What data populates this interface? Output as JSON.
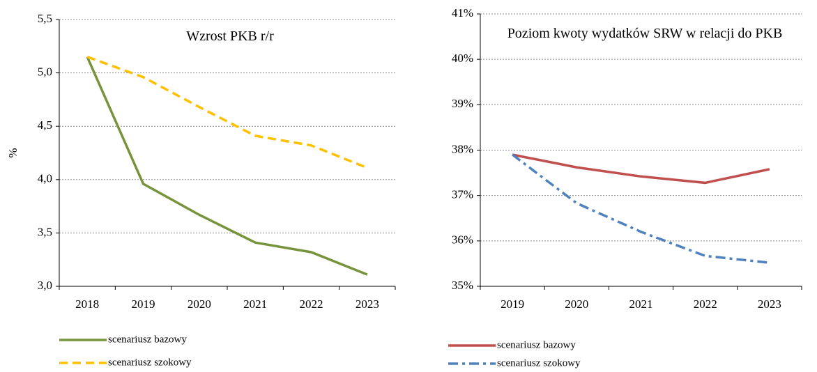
{
  "chart_data": [
    {
      "type": "line",
      "title": "Wzrost PKB r/r",
      "ylabel": "%",
      "categories": [
        "2018",
        "2019",
        "2020",
        "2021",
        "2022",
        "2023"
      ],
      "series": [
        {
          "name": "scenariusz bazowy",
          "color": "#77933c",
          "style": "solid",
          "values": [
            5.15,
            3.96,
            3.67,
            3.41,
            3.32,
            3.11
          ]
        },
        {
          "name": "scenariusz szokowy",
          "color": "#ffc000",
          "style": "dashed",
          "values": [
            5.15,
            4.96,
            4.68,
            4.41,
            4.32,
            4.11
          ]
        }
      ],
      "ylim": [
        3.0,
        5.5
      ],
      "yticks": [
        {
          "value": 3.0,
          "label": "3,0"
        },
        {
          "value": 3.5,
          "label": "3,5"
        },
        {
          "value": 4.0,
          "label": "4,0"
        },
        {
          "value": 4.5,
          "label": "4,5"
        },
        {
          "value": 5.0,
          "label": "5,0"
        },
        {
          "value": 5.5,
          "label": "5,5"
        }
      ],
      "grid": true,
      "legend": "bottom"
    },
    {
      "type": "line",
      "title": "Poziom kwoty wydatków SRW w relacji do PKB",
      "categories": [
        "2019",
        "2020",
        "2021",
        "2022",
        "2023"
      ],
      "series": [
        {
          "name": "scenariusz bazowy",
          "color": "#c0504d",
          "style": "solid",
          "values": [
            37.9,
            37.62,
            37.42,
            37.28,
            37.58
          ]
        },
        {
          "name": "scenariusz szokowy",
          "color": "#4f81bd",
          "style": "dashdot",
          "values": [
            37.9,
            36.83,
            36.2,
            35.67,
            35.52
          ]
        }
      ],
      "ylim": [
        35,
        41
      ],
      "yticks": [
        {
          "value": 35,
          "label": "35%"
        },
        {
          "value": 36,
          "label": "36%"
        },
        {
          "value": 37,
          "label": "37%"
        },
        {
          "value": 38,
          "label": "38%"
        },
        {
          "value": 39,
          "label": "39%"
        },
        {
          "value": 40,
          "label": "40%"
        },
        {
          "value": 41,
          "label": "41%"
        }
      ],
      "grid": true,
      "legend": "bottom"
    }
  ]
}
